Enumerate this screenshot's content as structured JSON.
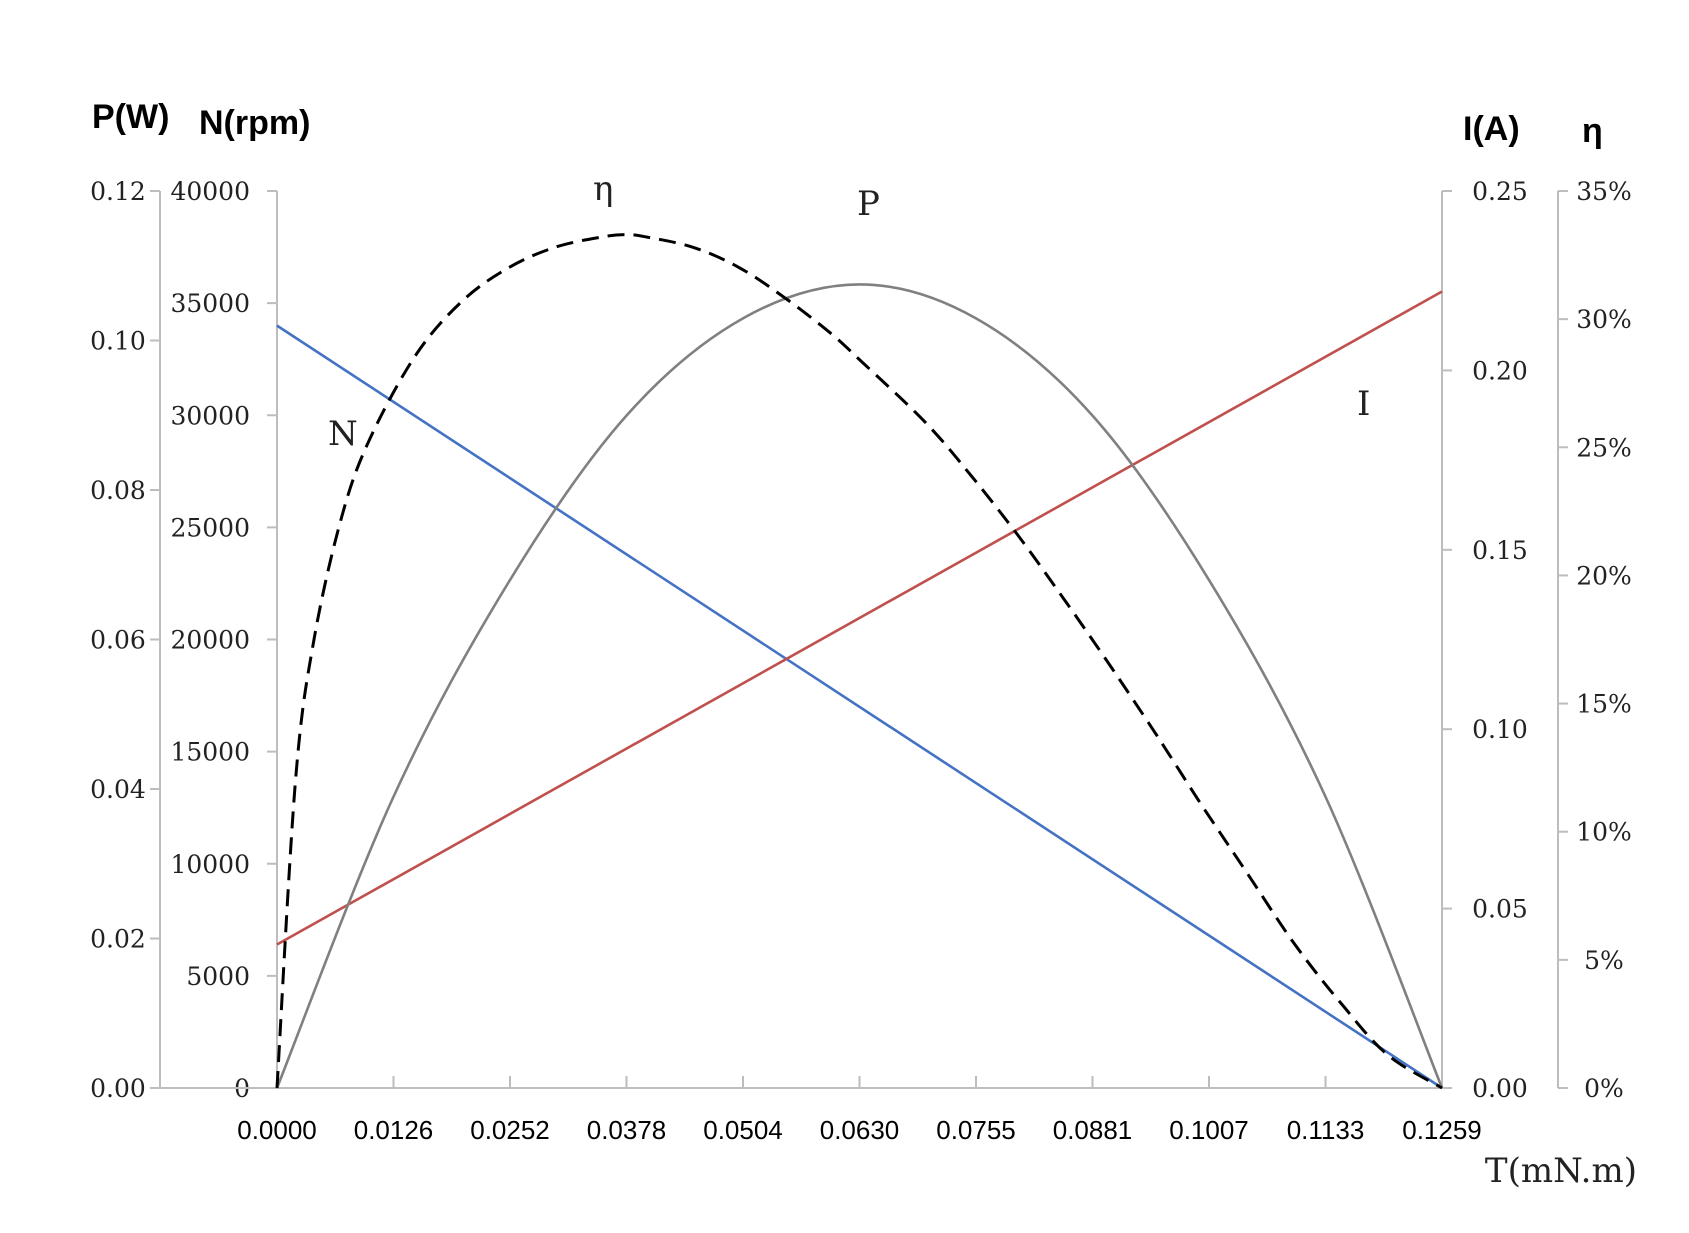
{
  "chart_data": {
    "type": "line",
    "xlabel": "T(mN.m)",
    "x_ticks": [
      "0.0000",
      "0.0126",
      "0.0252",
      "0.0378",
      "0.0504",
      "0.0630",
      "0.0755",
      "0.0881",
      "0.1007",
      "0.1133",
      "0.1259"
    ],
    "xlim": [
      0,
      0.1259
    ],
    "axes": {
      "power": {
        "unit_label": "P(W)",
        "position": "left-outer",
        "ylim": [
          0,
          0.12
        ],
        "ticks": [
          "0.12",
          "0.10",
          "0.08",
          "0.06",
          "0.04",
          "0.02",
          "0.00"
        ]
      },
      "speed": {
        "unit_label": "N(rpm)",
        "position": "left-inner",
        "ylim": [
          0,
          40000
        ],
        "ticks": [
          "40000",
          "35000",
          "30000",
          "25000",
          "20000",
          "15000",
          "10000",
          "5000",
          "0"
        ]
      },
      "current": {
        "unit_label": "I(A)",
        "position": "right-inner",
        "ylim": [
          0,
          0.25
        ],
        "ticks": [
          "0.25",
          "0.20",
          "0.15",
          "0.10",
          "0.05",
          "0.00"
        ]
      },
      "efficiency": {
        "unit_label": "η",
        "position": "right-outer",
        "ylim": [
          0,
          0.35
        ],
        "ticks": [
          "35%",
          "30%",
          "25%",
          "20%",
          "15%",
          "10%",
          "5%",
          "0%"
        ]
      }
    },
    "series": [
      {
        "name": "N",
        "axis": "speed",
        "color": "#4472c4",
        "style": "solid",
        "x": [
          0,
          0.1259
        ],
        "y": [
          34000,
          0
        ]
      },
      {
        "name": "I",
        "axis": "current",
        "color": "#c0504d",
        "style": "solid",
        "x": [
          0,
          0.1259
        ],
        "y": [
          0.04,
          0.222
        ]
      },
      {
        "name": "P",
        "axis": "power",
        "color": "#808080",
        "style": "solid",
        "x": [
          0,
          0.0126,
          0.0252,
          0.0378,
          0.0504,
          0.063,
          0.0755,
          0.0881,
          0.1007,
          0.1133,
          0.1259
        ],
        "y": [
          0,
          0.039,
          0.068,
          0.09,
          0.103,
          0.1075,
          0.103,
          0.09,
          0.068,
          0.039,
          0
        ]
      },
      {
        "name": "η",
        "axis": "efficiency",
        "color": "#000000",
        "style": "dashed",
        "x": [
          0,
          0.002,
          0.004,
          0.007,
          0.01,
          0.015,
          0.02,
          0.025,
          0.03,
          0.035,
          0.0378,
          0.04,
          0.045,
          0.05,
          0.055,
          0.06,
          0.063,
          0.07,
          0.075,
          0.08,
          0.085,
          0.09,
          0.095,
          0.1,
          0.105,
          0.11,
          0.115,
          0.12,
          0.1259
        ],
        "y": [
          0,
          0.12,
          0.175,
          0.223,
          0.253,
          0.286,
          0.307,
          0.32,
          0.328,
          0.332,
          0.333,
          0.332,
          0.328,
          0.32,
          0.308,
          0.294,
          0.284,
          0.26,
          0.239,
          0.216,
          0.191,
          0.165,
          0.138,
          0.11,
          0.083,
          0.056,
          0.033,
          0.013,
          0
        ]
      }
    ],
    "annotations": [
      {
        "text": "N",
        "series": "N"
      },
      {
        "text": "η",
        "series": "η"
      },
      {
        "text": "P",
        "series": "P"
      },
      {
        "text": "I",
        "series": "I"
      }
    ],
    "grid": false,
    "legend": "none (inline curve labels)"
  }
}
